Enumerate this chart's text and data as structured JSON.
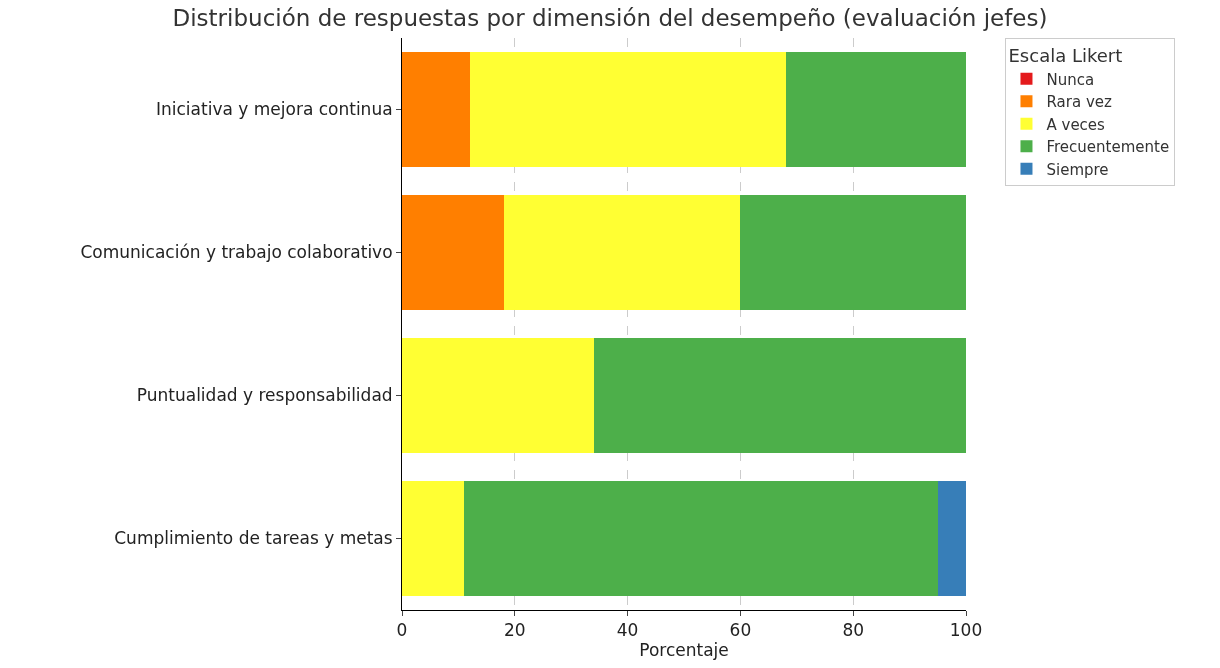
{
  "chart_data": {
    "type": "bar",
    "orientation": "horizontal",
    "stacked": true,
    "title": "Distribución de respuestas por dimensión del desempeño (evaluación jefes)",
    "xlabel": "Porcentaje",
    "legend_title": "Escala Likert",
    "categories": [
      "Iniciativa y mejora continua",
      "Comunicación y trabajo colaborativo",
      "Puntualidad y responsabilidad",
      "Cumplimiento de tareas y metas"
    ],
    "series": [
      {
        "name": "Nunca",
        "color": "#e41a1c",
        "values": [
          0,
          0,
          0,
          0
        ]
      },
      {
        "name": "Rara vez",
        "color": "#ff7f00",
        "values": [
          12,
          18,
          0,
          0
        ]
      },
      {
        "name": "A veces",
        "color": "#ffff33",
        "values": [
          56,
          42,
          34,
          11
        ]
      },
      {
        "name": "Frecuentemente",
        "color": "#4daf4a",
        "values": [
          32,
          40,
          66,
          84
        ]
      },
      {
        "name": "Siempre",
        "color": "#377eb8",
        "values": [
          0,
          0,
          0,
          5
        ]
      }
    ],
    "xlim": [
      0,
      100
    ],
    "xticks": [
      0,
      20,
      40,
      60,
      80,
      100
    ],
    "grid": "x",
    "legend": "top right"
  }
}
